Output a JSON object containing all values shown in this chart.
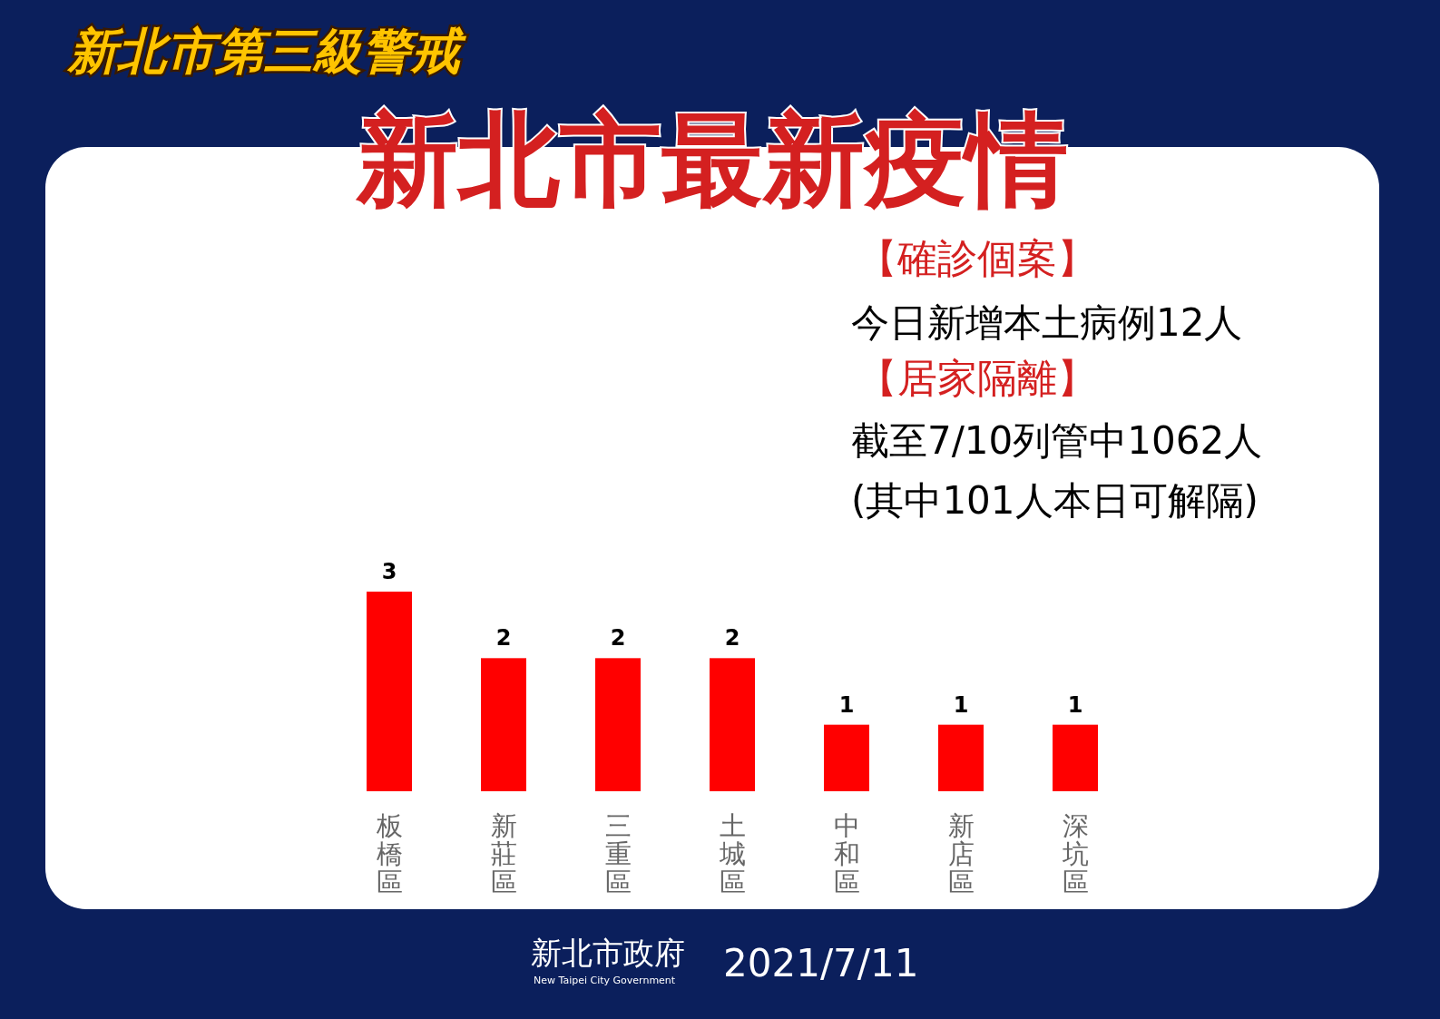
{
  "chart_data": {
    "type": "bar",
    "title": "新北市最新疫情",
    "subtitle": "新北市第三級警戒",
    "categories": [
      "板橋區",
      "新莊區",
      "三重區",
      "土城區",
      "中和區",
      "新店區",
      "深坑區"
    ],
    "values": [
      3,
      2,
      2,
      2,
      1,
      1,
      1
    ],
    "color": "#ff0000",
    "data_labels": true,
    "annotations": [
      "【確診個案】",
      "今日新增本土病例12人",
      "【居家隔離】",
      "截至7/10列管中1062人",
      "(其中101人本日可解隔)",
      "新北市政府",
      "New Taipei City Government",
      "2021/7/11"
    ]
  }
}
